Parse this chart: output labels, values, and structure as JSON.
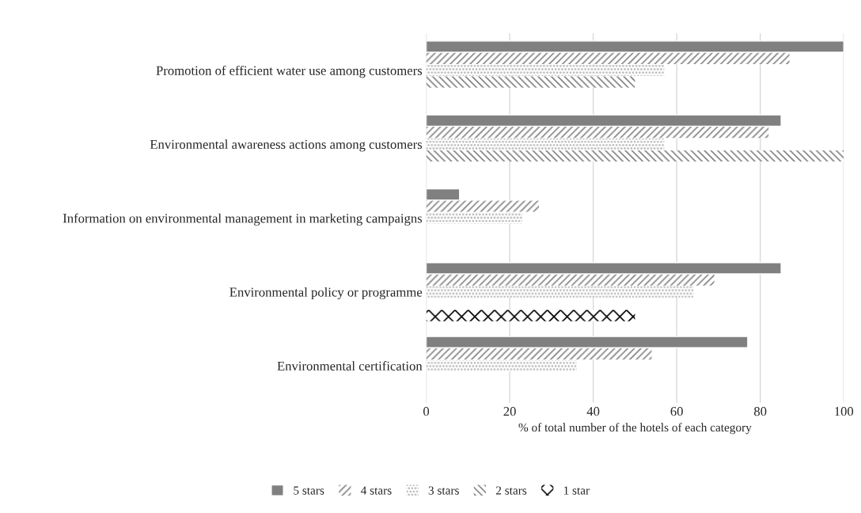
{
  "chart_data": {
    "type": "bar",
    "orientation": "horizontal",
    "categories": [
      "Promotion of efficient water use among customers",
      "Environmental awareness actions among customers",
      "Information on environmental management in marketing campaigns",
      "Environmental policy or programme",
      "Environmental certification"
    ],
    "series": [
      {
        "name": "5 stars",
        "color": "#808080",
        "values": [
          100,
          85,
          8,
          85,
          77
        ]
      },
      {
        "name": "4 stars",
        "color": "#808080",
        "values": [
          87,
          82,
          27,
          69,
          54
        ]
      },
      {
        "name": "3 stars",
        "color": "#a6a6a6",
        "values": [
          57,
          57,
          23,
          64,
          36
        ]
      },
      {
        "name": "2 stars",
        "color": "#808080",
        "values": [
          50,
          100,
          null,
          null,
          null
        ]
      },
      {
        "name": "1 star",
        "color": "#000000",
        "values": [
          null,
          null,
          null,
          50,
          null
        ]
      }
    ],
    "xlabel": "% of total number of the hotels of each category",
    "xlim": [
      0,
      100
    ],
    "xticks": [
      0,
      20,
      40,
      60,
      80,
      100
    ],
    "grid": "x",
    "legend": "bottom"
  }
}
